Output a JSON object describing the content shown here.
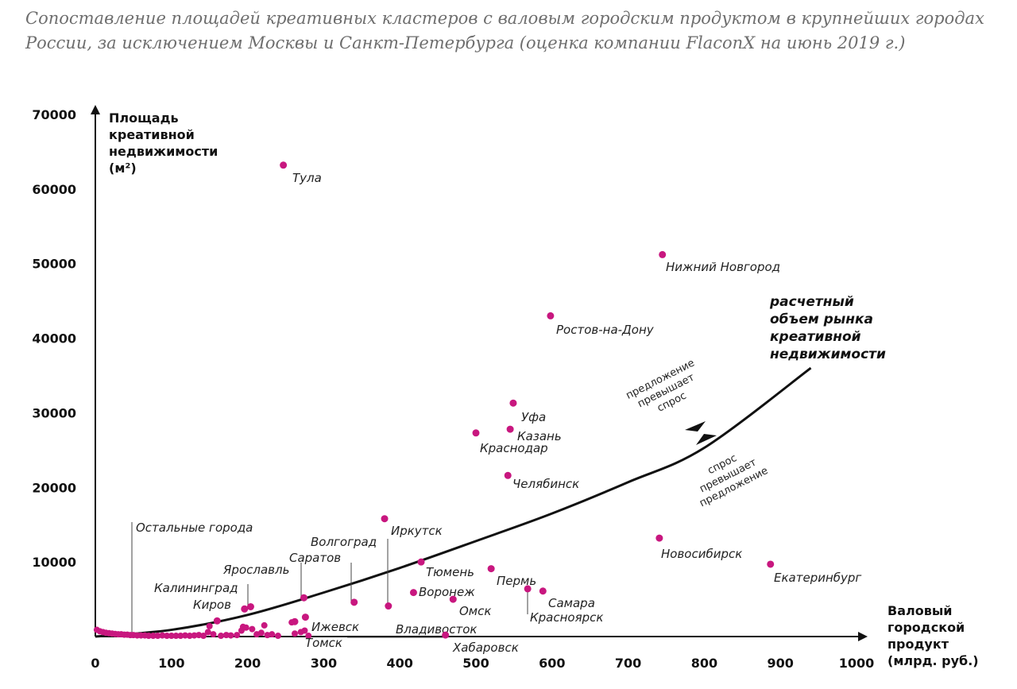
{
  "title_line1": "Сопоставление площадей креативных кластеров с валовым городским продуктом в крупнейших городах",
  "title_line2": "России, за исключением Москвы и Санкт-Петербурга (оценка компании FlaconX на июнь 2019 г.)",
  "colors": {
    "point": "#c8177f",
    "axis": "#111111",
    "title": "#6e6e6e"
  },
  "chart_data": {
    "type": "scatter",
    "xlabel": [
      "Валовый",
      "городской",
      "продукт",
      "(млрд. руб.)"
    ],
    "ylabel": [
      "Площадь",
      "креативной",
      "недвижимости",
      "(м²)"
    ],
    "xlim": [
      0,
      1000
    ],
    "ylim": [
      0,
      70000
    ],
    "xticks": [
      "0",
      "100",
      "200",
      "300",
      "400",
      "500",
      "600",
      "700",
      "800",
      "900",
      "1000"
    ],
    "yticks": [
      "10000",
      "20000",
      "30000",
      "40000",
      "50000",
      "60000",
      "70000"
    ],
    "points": [
      {
        "name": "Тула",
        "x": 247,
        "y": 63200
      },
      {
        "name": "Нижний Новгород",
        "x": 745,
        "y": 51200
      },
      {
        "name": "Ростов-на-Дону",
        "x": 598,
        "y": 43000
      },
      {
        "name": "Уфа",
        "x": 549,
        "y": 31300
      },
      {
        "name": "Казань",
        "x": 545,
        "y": 27800
      },
      {
        "name": "Краснодар",
        "x": 500,
        "y": 27300
      },
      {
        "name": "Челябинск",
        "x": 542,
        "y": 21600
      },
      {
        "name": "Иркутск",
        "x": 380,
        "y": 15800
      },
      {
        "name": "Новосибирск",
        "x": 741,
        "y": 13200
      },
      {
        "name": "Екатеринбург",
        "x": 887,
        "y": 9700
      },
      {
        "name": "Тюмень",
        "x": 428,
        "y": 10000
      },
      {
        "name": "Пермь",
        "x": 520,
        "y": 9100
      },
      {
        "name": "Воронеж",
        "x": 418,
        "y": 5900
      },
      {
        "name": "Омск",
        "x": 470,
        "y": 5000
      },
      {
        "name": "Красноярск",
        "x": 568,
        "y": 6400
      },
      {
        "name": "Самара",
        "x": 588,
        "y": 6100
      },
      {
        "name": "Саратов",
        "x": 274,
        "y": 5200
      },
      {
        "name": "Волгоград",
        "x": 340,
        "y": 4600
      },
      {
        "name": "Ярославль",
        "x": 204,
        "y": 4000
      },
      {
        "name": "Калининград",
        "x": 196,
        "y": 3700
      },
      {
        "name": "Киров",
        "x": 160,
        "y": 2100
      },
      {
        "name": "Ижевск",
        "x": 276,
        "y": 2600
      },
      {
        "name": "Владивосток",
        "x": 385,
        "y": 4100
      },
      {
        "name": "Томск",
        "x": 262,
        "y": 2000
      },
      {
        "name": "Хабаровск",
        "x": 460,
        "y": 200
      }
    ],
    "other_points": [
      [
        2,
        900
      ],
      [
        6,
        700
      ],
      [
        10,
        600
      ],
      [
        14,
        500
      ],
      [
        18,
        450
      ],
      [
        22,
        400
      ],
      [
        26,
        350
      ],
      [
        30,
        300
      ],
      [
        34,
        300
      ],
      [
        38,
        250
      ],
      [
        42,
        250
      ],
      [
        46,
        200
      ],
      [
        50,
        200
      ],
      [
        55,
        150
      ],
      [
        60,
        150
      ],
      [
        65,
        150
      ],
      [
        70,
        100
      ],
      [
        76,
        100
      ],
      [
        82,
        100
      ],
      [
        88,
        150
      ],
      [
        94,
        100
      ],
      [
        100,
        100
      ],
      [
        106,
        100
      ],
      [
        112,
        100
      ],
      [
        118,
        150
      ],
      [
        124,
        100
      ],
      [
        130,
        150
      ],
      [
        136,
        200
      ],
      [
        142,
        100
      ],
      [
        148,
        600
      ],
      [
        150,
        1400
      ],
      [
        155,
        300
      ],
      [
        165,
        100
      ],
      [
        172,
        200
      ],
      [
        178,
        150
      ],
      [
        186,
        200
      ],
      [
        192,
        800
      ],
      [
        194,
        1300
      ],
      [
        198,
        1200
      ],
      [
        206,
        1000
      ],
      [
        212,
        300
      ],
      [
        218,
        500
      ],
      [
        222,
        1500
      ],
      [
        226,
        200
      ],
      [
        232,
        300
      ],
      [
        240,
        100
      ],
      [
        258,
        1900
      ],
      [
        262,
        400
      ],
      [
        270,
        600
      ],
      [
        275,
        800
      ],
      [
        280,
        100
      ]
    ],
    "curve": {
      "points": [
        [
          0,
          0
        ],
        [
          100,
          900
        ],
        [
          200,
          2900
        ],
        [
          300,
          5900
        ],
        [
          400,
          9200
        ],
        [
          500,
          12800
        ],
        [
          600,
          16500
        ],
        [
          700,
          20700
        ],
        [
          800,
          25300
        ],
        [
          940,
          36000
        ]
      ]
    },
    "annotations": {
      "others": "Остальные города",
      "curve_label": [
        "расчетный",
        "объем рынка",
        "креативной",
        "недвижимости"
      ],
      "above": [
        "предложение",
        "превышает",
        "спрос"
      ],
      "below": [
        "спрос",
        "превышает",
        "предложение"
      ]
    }
  }
}
